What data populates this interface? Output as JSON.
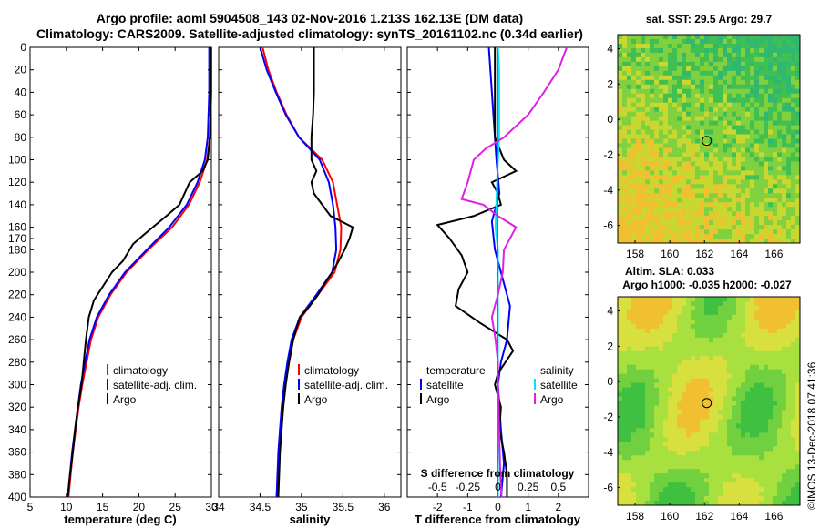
{
  "header": {
    "line1": "Argo profile: aoml 5904508_143 02-Nov-2016 1.213S 162.13E (DM data)",
    "line2": "Climatology: CARS2009. Satellite-adjusted climatology: synTS_20161102.nc (0.34d earlier)"
  },
  "colors": {
    "climatology": "#ff0000",
    "satellite": "#0000ff",
    "argo": "#000000",
    "sal_satellite": "#00e5ff",
    "sal_argo": "#e020e0"
  },
  "side_text": "©IMOS 13-Dec-2018 07:41:36",
  "chart_data": [
    {
      "type": "line",
      "name": "temperature",
      "xlabel": "temperature (deg C)",
      "ylabel": "",
      "xlim": [
        5,
        30
      ],
      "ylim": [
        400,
        0
      ],
      "xticks": [
        5,
        10,
        15,
        20,
        25,
        30
      ],
      "yticks": [
        0,
        20,
        40,
        60,
        80,
        100,
        120,
        140,
        160,
        170,
        180,
        200,
        220,
        240,
        260,
        280,
        300,
        320,
        340,
        360,
        380,
        400
      ],
      "legend": {
        "position": "bottom-right",
        "items": [
          "climatology",
          "satellite-adj. clim.",
          "Argo"
        ]
      },
      "series": [
        {
          "name": "climatology",
          "color": "#ff0000",
          "points": [
            [
              30,
              0
            ],
            [
              30,
              20
            ],
            [
              30,
              40
            ],
            [
              29.9,
              60
            ],
            [
              29.8,
              80
            ],
            [
              29.4,
              100
            ],
            [
              28.4,
              120
            ],
            [
              26.9,
              140
            ],
            [
              24.6,
              160
            ],
            [
              21.3,
              180
            ],
            [
              18.3,
              200
            ],
            [
              16.1,
              220
            ],
            [
              14.4,
              240
            ],
            [
              13.4,
              260
            ],
            [
              12.8,
              280
            ],
            [
              12.2,
              300
            ],
            [
              11.7,
              320
            ],
            [
              11.3,
              340
            ],
            [
              10.9,
              360
            ],
            [
              10.6,
              380
            ],
            [
              10.3,
              400
            ]
          ]
        },
        {
          "name": "satellite-adj. clim.",
          "color": "#0000ff",
          "points": [
            [
              29.7,
              0
            ],
            [
              29.7,
              20
            ],
            [
              29.7,
              40
            ],
            [
              29.6,
              60
            ],
            [
              29.5,
              80
            ],
            [
              29.1,
              100
            ],
            [
              28.1,
              120
            ],
            [
              26.6,
              140
            ],
            [
              24.2,
              160
            ],
            [
              21.1,
              180
            ],
            [
              18.1,
              200
            ],
            [
              15.9,
              220
            ],
            [
              14.2,
              240
            ],
            [
              13.2,
              260
            ],
            [
              12.6,
              280
            ],
            [
              12.0,
              300
            ],
            [
              11.6,
              320
            ],
            [
              11.2,
              340
            ],
            [
              10.8,
              360
            ],
            [
              10.5,
              380
            ],
            [
              10.2,
              400
            ]
          ]
        },
        {
          "name": "Argo",
          "color": "#000000",
          "points": [
            [
              29.9,
              0
            ],
            [
              29.9,
              20
            ],
            [
              29.9,
              40
            ],
            [
              29.9,
              60
            ],
            [
              29.8,
              80
            ],
            [
              29.5,
              100
            ],
            [
              28.8,
              110
            ],
            [
              27.0,
              120
            ],
            [
              25.6,
              140
            ],
            [
              23.8,
              150
            ],
            [
              22.3,
              158
            ],
            [
              21.0,
              165
            ],
            [
              19.2,
              175
            ],
            [
              17.8,
              190
            ],
            [
              16.3,
              200
            ],
            [
              14.8,
              215
            ],
            [
              13.8,
              225
            ],
            [
              13.1,
              240
            ],
            [
              12.7,
              260
            ],
            [
              12.4,
              280
            ],
            [
              12.1,
              300
            ],
            [
              11.6,
              320
            ],
            [
              11.2,
              340
            ],
            [
              10.9,
              360
            ],
            [
              10.5,
              380
            ],
            [
              10.2,
              400
            ]
          ]
        }
      ]
    },
    {
      "type": "line",
      "name": "salinity",
      "xlabel": "salinity",
      "xlim": [
        34,
        36.2
      ],
      "ylim": [
        400,
        0
      ],
      "xticks": [
        34,
        34.5,
        35,
        35.5,
        36
      ],
      "legend": {
        "position": "bottom-right",
        "items": [
          "climatology",
          "satellite-adj. clim.",
          "Argo"
        ]
      },
      "series": [
        {
          "name": "climatology",
          "color": "#ff0000",
          "points": [
            [
              34.53,
              0
            ],
            [
              34.6,
              20
            ],
            [
              34.7,
              40
            ],
            [
              34.82,
              60
            ],
            [
              34.97,
              80
            ],
            [
              35.25,
              100
            ],
            [
              35.38,
              120
            ],
            [
              35.43,
              140
            ],
            [
              35.48,
              160
            ],
            [
              35.47,
              180
            ],
            [
              35.4,
              200
            ],
            [
              35.2,
              220
            ],
            [
              35.0,
              240
            ],
            [
              34.9,
              260
            ],
            [
              34.85,
              280
            ],
            [
              34.8,
              300
            ],
            [
              34.77,
              320
            ],
            [
              34.74,
              340
            ],
            [
              34.73,
              360
            ],
            [
              34.71,
              380
            ],
            [
              34.7,
              400
            ]
          ]
        },
        {
          "name": "satellite-adj. clim.",
          "color": "#0000ff",
          "points": [
            [
              34.5,
              0
            ],
            [
              34.58,
              20
            ],
            [
              34.69,
              40
            ],
            [
              34.81,
              60
            ],
            [
              34.97,
              80
            ],
            [
              35.22,
              100
            ],
            [
              35.33,
              120
            ],
            [
              35.38,
              140
            ],
            [
              35.41,
              160
            ],
            [
              35.42,
              180
            ],
            [
              35.37,
              200
            ],
            [
              35.18,
              220
            ],
            [
              34.98,
              240
            ],
            [
              34.88,
              260
            ],
            [
              34.83,
              280
            ],
            [
              34.79,
              300
            ],
            [
              34.76,
              320
            ],
            [
              34.74,
              340
            ],
            [
              34.72,
              360
            ],
            [
              34.71,
              380
            ],
            [
              34.7,
              400
            ]
          ]
        },
        {
          "name": "Argo",
          "color": "#000000",
          "points": [
            [
              35.15,
              0
            ],
            [
              35.15,
              20
            ],
            [
              35.15,
              40
            ],
            [
              35.14,
              60
            ],
            [
              35.12,
              80
            ],
            [
              35.12,
              100
            ],
            [
              35.18,
              110
            ],
            [
              35.12,
              120
            ],
            [
              35.15,
              130
            ],
            [
              35.25,
              140
            ],
            [
              35.35,
              150
            ],
            [
              35.62,
              160
            ],
            [
              35.58,
              170
            ],
            [
              35.52,
              180
            ],
            [
              35.45,
              190
            ],
            [
              35.37,
              200
            ],
            [
              35.28,
              210
            ],
            [
              35.2,
              220
            ],
            [
              35.1,
              230
            ],
            [
              34.98,
              240
            ],
            [
              34.9,
              260
            ],
            [
              34.85,
              280
            ],
            [
              34.81,
              300
            ],
            [
              34.78,
              320
            ],
            [
              34.76,
              340
            ],
            [
              34.74,
              360
            ],
            [
              34.73,
              380
            ],
            [
              34.72,
              400
            ]
          ]
        }
      ]
    },
    {
      "type": "line",
      "name": "differences",
      "xlabel": "T difference from climatology",
      "top_axis_label": "S difference from climatology",
      "xlim": [
        -3,
        3
      ],
      "ylim": [
        400,
        0
      ],
      "xticks": [
        -2,
        -1,
        0,
        1,
        2
      ],
      "top_ticks": [
        -0.5,
        -0.25,
        0,
        0.25,
        0.5
      ],
      "legend_left": {
        "title": "temperature",
        "items": [
          "satellite",
          "Argo"
        ]
      },
      "legend_right": {
        "title": "salinity",
        "items": [
          "satellite",
          "Argo"
        ]
      },
      "series": [
        {
          "name": "temperature satellite",
          "color": "#0000ff",
          "points": [
            [
              -0.3,
              0
            ],
            [
              -0.25,
              20
            ],
            [
              -0.2,
              40
            ],
            [
              -0.15,
              60
            ],
            [
              -0.1,
              80
            ],
            [
              -0.05,
              100
            ],
            [
              0.05,
              130
            ],
            [
              -0.2,
              155
            ],
            [
              -0.1,
              180
            ],
            [
              0.1,
              200
            ],
            [
              0.4,
              230
            ],
            [
              0.3,
              260
            ],
            [
              0.1,
              280
            ],
            [
              0,
              300
            ],
            [
              0.1,
              340
            ],
            [
              0.2,
              370
            ],
            [
              0.1,
              400
            ]
          ]
        },
        {
          "name": "temperature Argo",
          "color": "#000000",
          "points": [
            [
              -0.1,
              0
            ],
            [
              -0.1,
              40
            ],
            [
              -0.1,
              80
            ],
            [
              0.2,
              100
            ],
            [
              0.6,
              110
            ],
            [
              -0.2,
              120
            ],
            [
              0.0,
              130
            ],
            [
              0.1,
              140
            ],
            [
              -0.8,
              150
            ],
            [
              -2.0,
              158
            ],
            [
              -1.6,
              170
            ],
            [
              -1.2,
              185
            ],
            [
              -1.0,
              200
            ],
            [
              -1.3,
              215
            ],
            [
              -1.4,
              230
            ],
            [
              -0.6,
              245
            ],
            [
              0.3,
              260
            ],
            [
              0.5,
              270
            ],
            [
              0,
              290
            ],
            [
              -0.1,
              300
            ],
            [
              0.1,
              320
            ],
            [
              0.05,
              340
            ],
            [
              0.2,
              360
            ],
            [
              0.3,
              380
            ],
            [
              0.3,
              400
            ]
          ]
        },
        {
          "name": "salinity satellite",
          "color": "#00e5ff",
          "points": [
            [
              0,
              0
            ],
            [
              0.01,
              20
            ],
            [
              0.01,
              40
            ],
            [
              0.01,
              60
            ],
            [
              0.01,
              80
            ],
            [
              0.0,
              100
            ],
            [
              -0.01,
              130
            ],
            [
              -0.02,
              160
            ],
            [
              0,
              180
            ],
            [
              0.0,
              200
            ],
            [
              0.0,
              230
            ],
            [
              0.0,
              260
            ],
            [
              0.0,
              300
            ],
            [
              0.0,
              340
            ],
            [
              0.0,
              370
            ],
            [
              0.0,
              400
            ]
          ]
        },
        {
          "name": "salinity Argo",
          "color": "#e020e0",
          "points": [
            [
              0.57,
              0
            ],
            [
              0.5,
              20
            ],
            [
              0.38,
              40
            ],
            [
              0.25,
              60
            ],
            [
              0.05,
              80
            ],
            [
              -0.1,
              90
            ],
            [
              -0.2,
              100
            ],
            [
              -0.25,
              120
            ],
            [
              -0.3,
              135
            ],
            [
              -0.12,
              140
            ],
            [
              0,
              150
            ],
            [
              0.15,
              160
            ],
            [
              0.1,
              170
            ],
            [
              0.05,
              180
            ],
            [
              0.04,
              200
            ],
            [
              0.0,
              220
            ],
            [
              -0.05,
              240
            ],
            [
              -0.02,
              260
            ],
            [
              0,
              280
            ],
            [
              0,
              300
            ],
            [
              0.01,
              340
            ],
            [
              0.02,
              380
            ],
            [
              0.03,
              400
            ]
          ]
        }
      ]
    },
    {
      "type": "heatmap",
      "name": "sst_map",
      "title": "sat. SST: 29.5 Argo: 29.7",
      "xlim": [
        157,
        167.5
      ],
      "ylim": [
        -7,
        4.8
      ],
      "xticks": [
        158,
        160,
        162,
        164,
        166
      ],
      "yticks": [
        4,
        2,
        0,
        -2,
        -4,
        -6
      ],
      "marker": {
        "lon": 162.13,
        "lat": -1.213
      }
    },
    {
      "type": "heatmap",
      "name": "sla_map",
      "title_line1": "Altim. SLA: 0.033",
      "title_line2": "Argo h1000: -0.035 h2000: -0.027",
      "xlim": [
        157,
        167.5
      ],
      "ylim": [
        -7,
        4.8
      ],
      "xticks": [
        158,
        160,
        162,
        164,
        166
      ],
      "yticks": [
        4,
        2,
        0,
        -2,
        -4,
        -6
      ],
      "marker": {
        "lon": 162.13,
        "lat": -1.213
      }
    }
  ]
}
